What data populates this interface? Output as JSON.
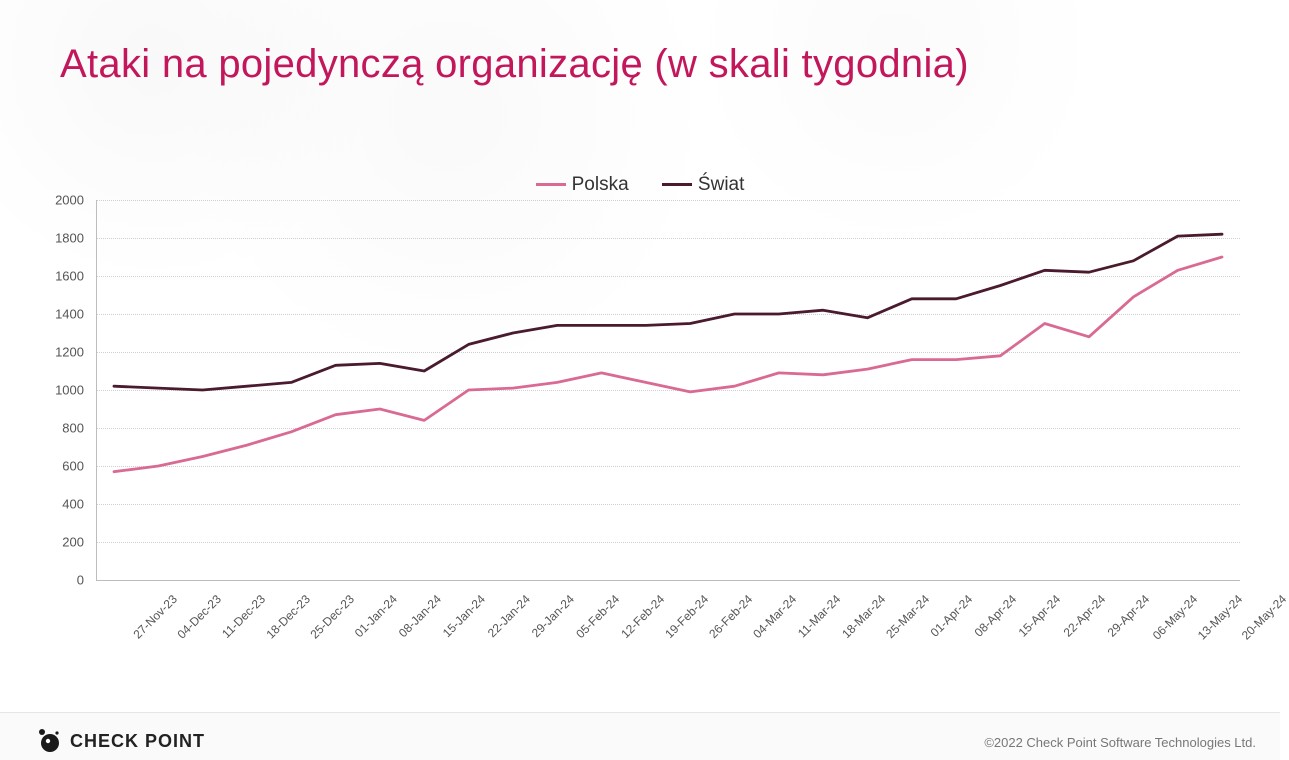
{
  "title": "Ataki na pojedynczą organizację (w skali tygodnia)",
  "title_color": "#c2185b",
  "title_fontsize": 40,
  "chart": {
    "type": "line",
    "background_color": "#ffffff",
    "grid_color": "#cfcfcf",
    "axis_color": "#bdbdbd",
    "ylim": [
      0,
      2000
    ],
    "ytick_step": 200,
    "yticks": [
      0,
      200,
      400,
      600,
      800,
      1000,
      1200,
      1400,
      1600,
      1800,
      2000
    ],
    "categories": [
      "27-Nov-23",
      "04-Dec-23",
      "11-Dec-23",
      "18-Dec-23",
      "25-Dec-23",
      "01-Jan-24",
      "08-Jan-24",
      "15-Jan-24",
      "22-Jan-24",
      "29-Jan-24",
      "05-Feb-24",
      "12-Feb-24",
      "19-Feb-24",
      "26-Feb-24",
      "04-Mar-24",
      "11-Mar-24",
      "18-Mar-24",
      "25-Mar-24",
      "01-Apr-24",
      "08-Apr-24",
      "15-Apr-24",
      "22-Apr-24",
      "29-Apr-24",
      "06-May-24",
      "13-May-24",
      "20-May-24"
    ],
    "x_label_fontsize": 12,
    "y_label_fontsize": 13,
    "line_width": 2.8,
    "series": [
      {
        "name": "Polska",
        "color": "#d96a93",
        "values": [
          570,
          600,
          650,
          710,
          780,
          870,
          900,
          840,
          1000,
          1010,
          1040,
          1090,
          1040,
          990,
          1020,
          1090,
          1080,
          1110,
          1160,
          1160,
          1180,
          1350,
          1280,
          1490,
          1630,
          1700
        ]
      },
      {
        "name": "Świat",
        "color": "#4a1a2f",
        "values": [
          1020,
          1010,
          1000,
          1020,
          1040,
          1130,
          1140,
          1100,
          1240,
          1300,
          1340,
          1340,
          1340,
          1350,
          1400,
          1400,
          1420,
          1380,
          1480,
          1480,
          1550,
          1630,
          1620,
          1680,
          1810,
          1820
        ]
      }
    ],
    "legend_fontsize": 19,
    "legend_position": "top-center"
  },
  "footer": {
    "brand": "CHECK POINT",
    "copyright": "©2022 Check Point Software Technologies Ltd."
  }
}
